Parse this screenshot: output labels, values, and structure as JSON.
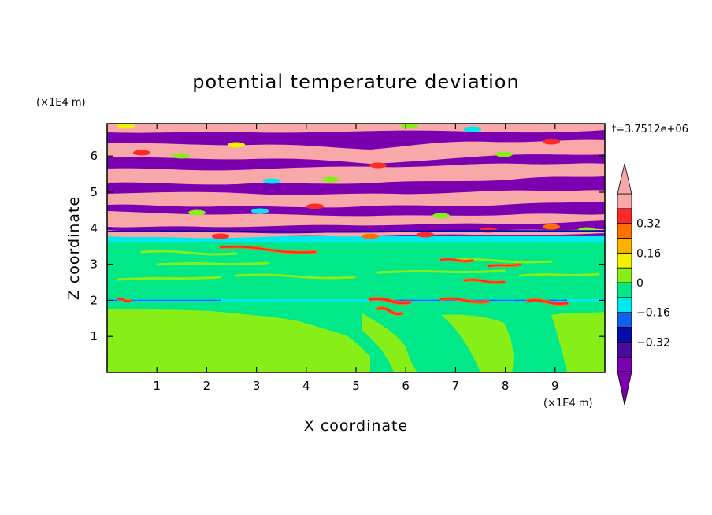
{
  "chart_data": {
    "type": "heatmap",
    "title": "potential temperature deviation",
    "xlabel": "X coordinate",
    "ylabel": "Z coordinate",
    "x_unit": "(×1E4 m)",
    "y_unit": "(×1E4 m)",
    "time_label": "t=3.7512e+06",
    "xlim": [
      0,
      10
    ],
    "ylim": [
      0,
      6.9
    ],
    "x_ticks": [
      "1",
      "2",
      "3",
      "4",
      "5",
      "6",
      "7",
      "8",
      "9"
    ],
    "y_ticks": [
      "1",
      "2",
      "3",
      "4",
      "5",
      "6"
    ],
    "colorbar": {
      "levels": [
        -0.48,
        -0.4,
        -0.32,
        -0.24,
        -0.16,
        -0.08,
        0,
        0.08,
        0.16,
        0.24,
        0.32,
        0.4,
        0.48
      ],
      "tick_labels": [
        "0.32",
        "0.16",
        "0",
        "−0.16",
        "−0.32"
      ],
      "tick_values": [
        0.32,
        0.16,
        0,
        -0.16,
        -0.32
      ],
      "colors": [
        "#7b00b0",
        "#4a0aa0",
        "#0a0aa8",
        "#1060f0",
        "#00e8f0",
        "#00e888",
        "#88ee18",
        "#f0f000",
        "#ffb000",
        "#ff7000",
        "#ff2828",
        "#f8a8a8"
      ],
      "under_color": "#7b00b0",
      "over_color": "#f8a8a8"
    }
  }
}
